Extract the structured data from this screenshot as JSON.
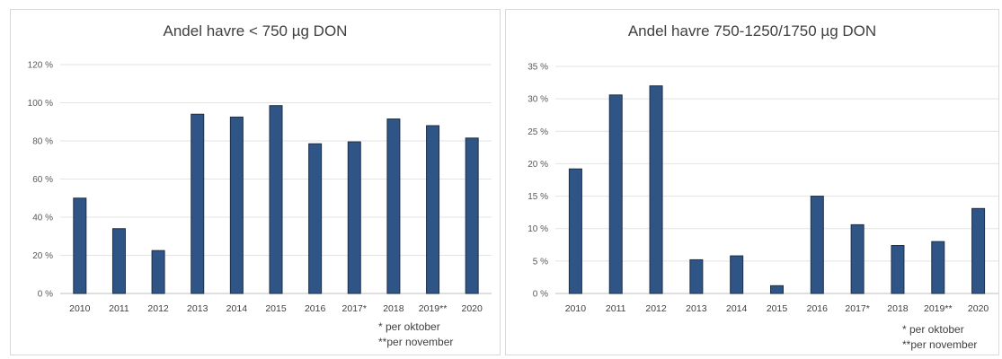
{
  "chart_data": [
    {
      "type": "bar",
      "title": "Andel havre < 750 µg DON",
      "categories": [
        "2010",
        "2011",
        "2012",
        "2013",
        "2014",
        "2015",
        "2016",
        "2017*",
        "2018",
        "2019**",
        "2020"
      ],
      "values": [
        50,
        34,
        22.5,
        94,
        92.5,
        98.5,
        78.5,
        79.5,
        91.5,
        88,
        81.5
      ],
      "unit": "%",
      "ylim": [
        0,
        120
      ],
      "yticks": [
        0,
        20,
        40,
        60,
        80,
        100,
        120
      ],
      "ytick_labels": [
        "0 %",
        "20 %",
        "40 %",
        "60 %",
        "80 %",
        "100 %",
        "120 %"
      ],
      "grid": true,
      "bar_color": "#2f5486",
      "footnotes": [
        "* per oktober",
        "**per november"
      ]
    },
    {
      "type": "bar",
      "title": "Andel havre 750-1250/1750 µg DON",
      "categories": [
        "2010",
        "2011",
        "2012",
        "2013",
        "2014",
        "2015",
        "2016",
        "2017*",
        "2018",
        "2019**",
        "2020"
      ],
      "values": [
        19.2,
        30.6,
        32,
        5.2,
        5.8,
        1.2,
        15,
        10.6,
        7.4,
        8,
        13.1
      ],
      "unit": "%",
      "ylim": [
        0,
        35
      ],
      "yticks": [
        0,
        5,
        10,
        15,
        20,
        25,
        30,
        35
      ],
      "ytick_labels": [
        "0 %",
        "5 %",
        "10 %",
        "15 %",
        "20 %",
        "25 %",
        "30 %",
        "35 %"
      ],
      "grid": true,
      "bar_color": "#2f5486",
      "footnotes": [
        "* per oktober",
        "**per november"
      ]
    }
  ]
}
